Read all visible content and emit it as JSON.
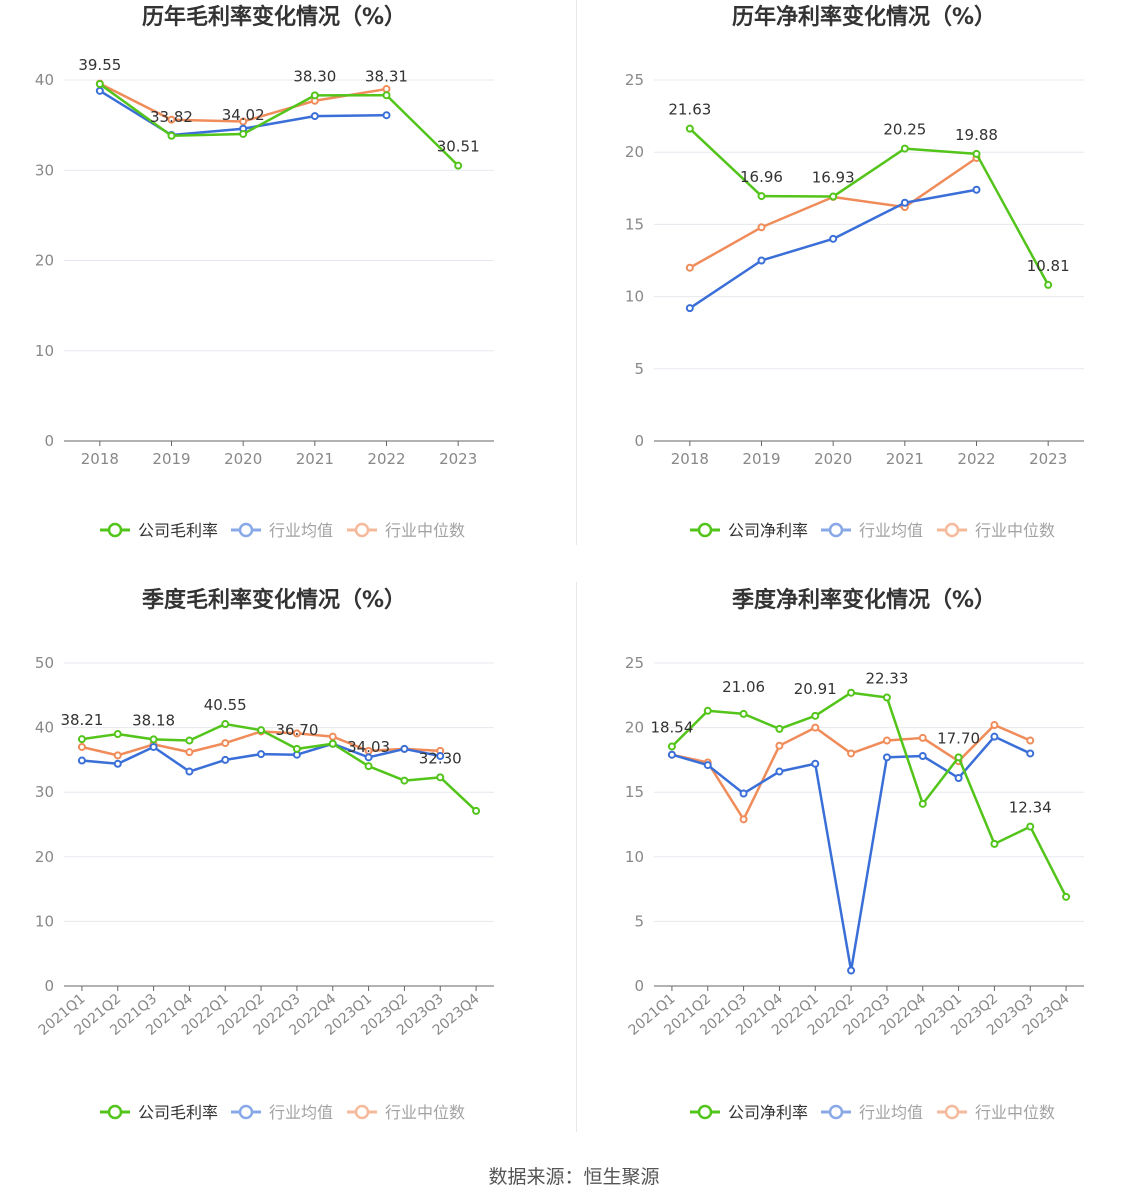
{
  "colors": {
    "company": "#52c41a",
    "avg": "#3b6fd8",
    "median": "#f08c5a",
    "grid": "#e6e8ef",
    "axis": "#888888",
    "text": "#333333"
  },
  "source": "数据来源：恒生聚源",
  "chart_data": [
    {
      "type": "line",
      "title": "历年毛利率变化情况（%）",
      "categories": [
        "2018",
        "2019",
        "2020",
        "2021",
        "2022",
        "2023"
      ],
      "ylim": [
        0,
        40
      ],
      "yticks": [
        0,
        10,
        20,
        30,
        40
      ],
      "grid": true,
      "legend_position": "bottom",
      "series": [
        {
          "name": "公司毛利率",
          "color": "#52c41a",
          "values": [
            39.55,
            33.82,
            34.02,
            38.3,
            38.31,
            30.51
          ],
          "labels": [
            "39.55",
            "33.82",
            "34.02",
            "38.30",
            "38.31",
            "30.51"
          ]
        },
        {
          "name": "行业均值",
          "color": "#3b6fd8",
          "values": [
            38.8,
            33.9,
            34.6,
            36.0,
            36.1,
            null
          ]
        },
        {
          "name": "行业中位数",
          "color": "#f08c5a",
          "values": [
            39.6,
            35.6,
            35.4,
            37.7,
            39.0,
            null
          ]
        }
      ]
    },
    {
      "type": "line",
      "title": "历年净利率变化情况（%）",
      "categories": [
        "2018",
        "2019",
        "2020",
        "2021",
        "2022",
        "2023"
      ],
      "ylim": [
        0,
        25
      ],
      "yticks": [
        0,
        5,
        10,
        15,
        20,
        25
      ],
      "grid": true,
      "legend_position": "bottom",
      "series": [
        {
          "name": "公司净利率",
          "color": "#52c41a",
          "values": [
            21.63,
            16.96,
            16.93,
            20.25,
            19.88,
            10.81
          ],
          "labels": [
            "21.63",
            "16.96",
            "16.93",
            "20.25",
            "19.88",
            "10.81"
          ]
        },
        {
          "name": "行业均值",
          "color": "#3b6fd8",
          "values": [
            9.2,
            12.5,
            14.0,
            16.5,
            17.4,
            null
          ]
        },
        {
          "name": "行业中位数",
          "color": "#f08c5a",
          "values": [
            12.0,
            14.8,
            16.9,
            16.2,
            19.6,
            null
          ]
        }
      ]
    },
    {
      "type": "line",
      "title": "季度毛利率变化情况（%）",
      "categories": [
        "2021Q1",
        "2021Q2",
        "2021Q3",
        "2021Q4",
        "2022Q1",
        "2022Q2",
        "2022Q3",
        "2022Q4",
        "2023Q1",
        "2023Q2",
        "2023Q3",
        "2023Q4"
      ],
      "ylim": [
        0,
        50
      ],
      "yticks": [
        0,
        10,
        20,
        30,
        40,
        50
      ],
      "grid": true,
      "legend_position": "bottom",
      "series": [
        {
          "name": "公司毛利率",
          "color": "#52c41a",
          "values": [
            38.21,
            39.0,
            38.18,
            38.0,
            40.55,
            39.6,
            36.7,
            37.5,
            34.03,
            31.8,
            32.3,
            27.1
          ],
          "labels": [
            "38.21",
            "",
            "38.18",
            "",
            "40.55",
            "",
            "36.70",
            "",
            "34.03",
            "",
            "32.30",
            ""
          ]
        },
        {
          "name": "行业均值",
          "color": "#3b6fd8",
          "values": [
            34.9,
            34.4,
            37.0,
            33.2,
            35.0,
            35.9,
            35.8,
            37.5,
            35.4,
            36.7,
            35.6,
            null
          ]
        },
        {
          "name": "行业中位数",
          "color": "#f08c5a",
          "values": [
            37.0,
            35.7,
            37.4,
            36.2,
            37.6,
            39.4,
            39.1,
            38.6,
            36.4,
            36.7,
            36.4,
            null
          ]
        }
      ]
    },
    {
      "type": "line",
      "title": "季度净利率变化情况（%）",
      "categories": [
        "2021Q1",
        "2021Q2",
        "2021Q3",
        "2021Q4",
        "2022Q1",
        "2022Q2",
        "2022Q3",
        "2022Q4",
        "2023Q1",
        "2023Q2",
        "2023Q3",
        "2023Q4"
      ],
      "ylim": [
        0,
        25
      ],
      "yticks": [
        0,
        5,
        10,
        15,
        20,
        25
      ],
      "grid": true,
      "legend_position": "bottom",
      "series": [
        {
          "name": "公司净利率",
          "color": "#52c41a",
          "values": [
            18.54,
            21.3,
            21.06,
            19.9,
            20.91,
            22.7,
            22.33,
            14.1,
            17.7,
            11.0,
            12.34,
            6.9
          ],
          "labels": [
            "18.54",
            "",
            "21.06",
            "",
            "20.91",
            "",
            "22.33",
            "",
            "17.70",
            "",
            "12.34",
            ""
          ]
        },
        {
          "name": "行业均值",
          "color": "#3b6fd8",
          "values": [
            17.9,
            17.1,
            14.9,
            16.6,
            17.2,
            1.2,
            17.7,
            17.8,
            16.1,
            19.3,
            18.0,
            null
          ]
        },
        {
          "name": "行业中位数",
          "color": "#f08c5a",
          "values": [
            17.9,
            17.3,
            12.9,
            18.6,
            20.0,
            18.0,
            19.0,
            19.2,
            17.4,
            20.2,
            19.0,
            null
          ]
        }
      ]
    }
  ]
}
